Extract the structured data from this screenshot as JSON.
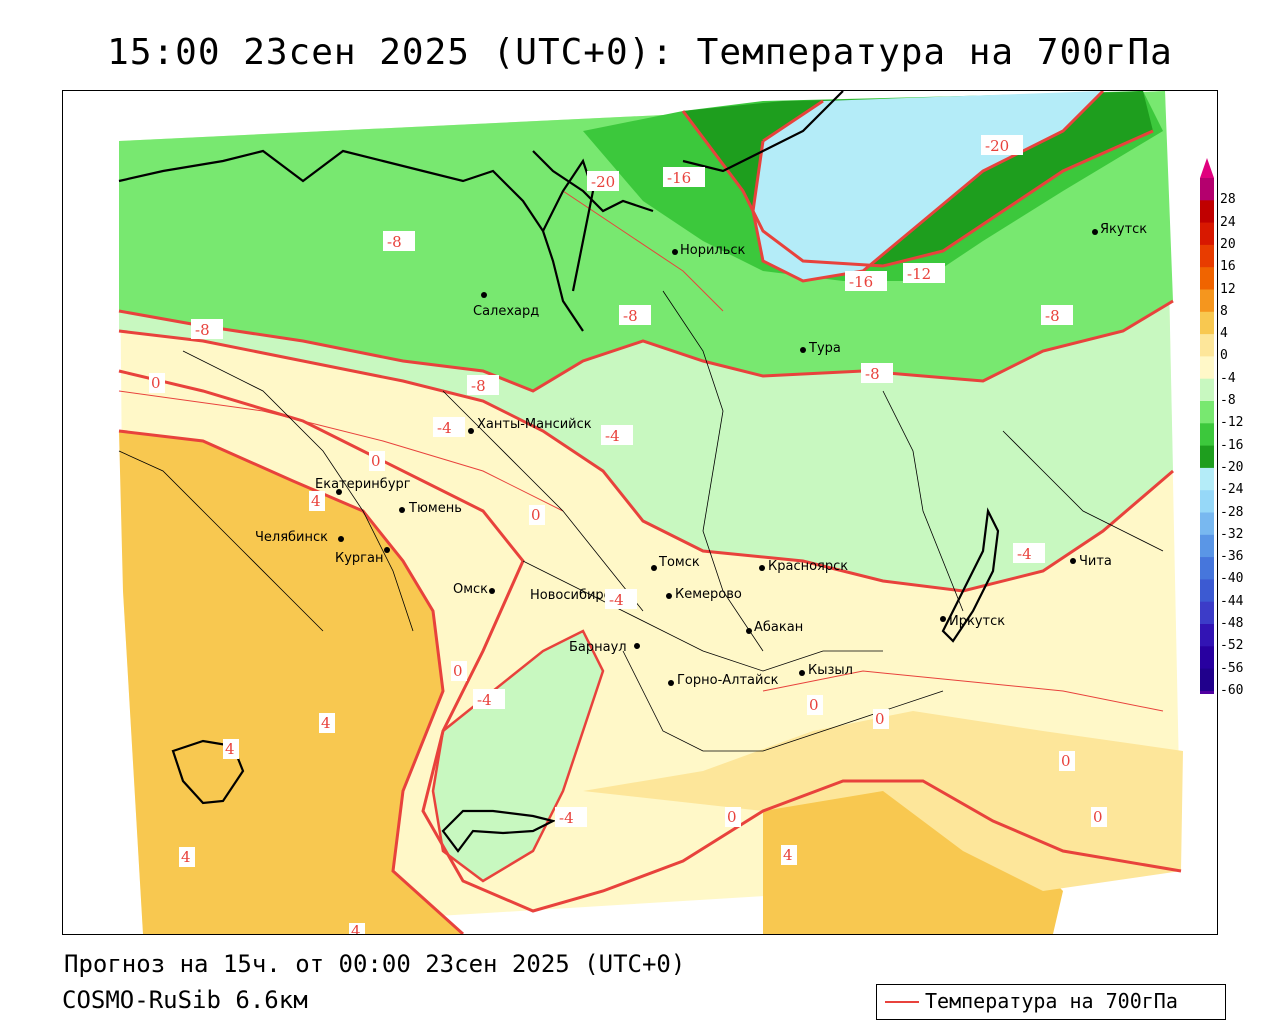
{
  "title": "15:00 23сен 2025 (UTC+0): Температура на 700гПа",
  "footer": {
    "forecast": "Прогноз на 15ч. от 00:00 23сен 2025 (UTC+0)",
    "model": "COSMO-RuSib 6.6км"
  },
  "legend": {
    "label": "Температура на 700гПа",
    "line_color": "#e8423c"
  },
  "colorbar": {
    "labels": [
      "28",
      "24",
      "20",
      "16",
      "12",
      "8",
      "4",
      "0",
      "-4",
      "-8",
      "-12",
      "-16",
      "-20",
      "-24",
      "-28",
      "-32",
      "-36",
      "-40",
      "-44",
      "-48",
      "-52",
      "-56",
      "-60"
    ],
    "colors": [
      "#b4006e",
      "#c00000",
      "#d81800",
      "#e83c00",
      "#f06400",
      "#f5961e",
      "#f8c850",
      "#fde69a",
      "#fff8c8",
      "#c8f8c0",
      "#78e870",
      "#3cc83c",
      "#1e9e1e",
      "#b4ecf8",
      "#96d8f8",
      "#78b8f0",
      "#5a96e6",
      "#4676dc",
      "#3c5ad2",
      "#3c3cc8",
      "#3214b4",
      "#2800a0",
      "#20008c",
      "#5000a0"
    ],
    "top_color": "#e0007e",
    "bottom_color": "#9632c8"
  },
  "cities": [
    {
      "name": "Якутск"
    },
    {
      "name": "Норильск"
    },
    {
      "name": "Салехард"
    },
    {
      "name": "Тура"
    },
    {
      "name": "Ханты-Мансийск"
    },
    {
      "name": "Екатеринбург"
    },
    {
      "name": "Тюмень"
    },
    {
      "name": "Челябинск"
    },
    {
      "name": "Курган"
    },
    {
      "name": "Омск"
    },
    {
      "name": "Новосибирск"
    },
    {
      "name": "Томск"
    },
    {
      "name": "Кемерово"
    },
    {
      "name": "Красноярск"
    },
    {
      "name": "Абакан"
    },
    {
      "name": "Барнаул"
    },
    {
      "name": "Горно-Алтайск"
    },
    {
      "name": "Кызыл"
    },
    {
      "name": "Иркутск"
    },
    {
      "name": "Чита"
    }
  ],
  "contour_labels": [
    "-20",
    "-16",
    "-16",
    "-12",
    "-8",
    "-8",
    "-8",
    "-8",
    "-8",
    "-8",
    "0",
    "-4",
    "-4",
    "0",
    "0",
    "4",
    "0",
    "-4",
    "0",
    "-4",
    "0",
    "0",
    "0",
    "0",
    "4",
    "4",
    "4",
    "4",
    "4",
    "-4",
    "-4",
    "-20"
  ]
}
